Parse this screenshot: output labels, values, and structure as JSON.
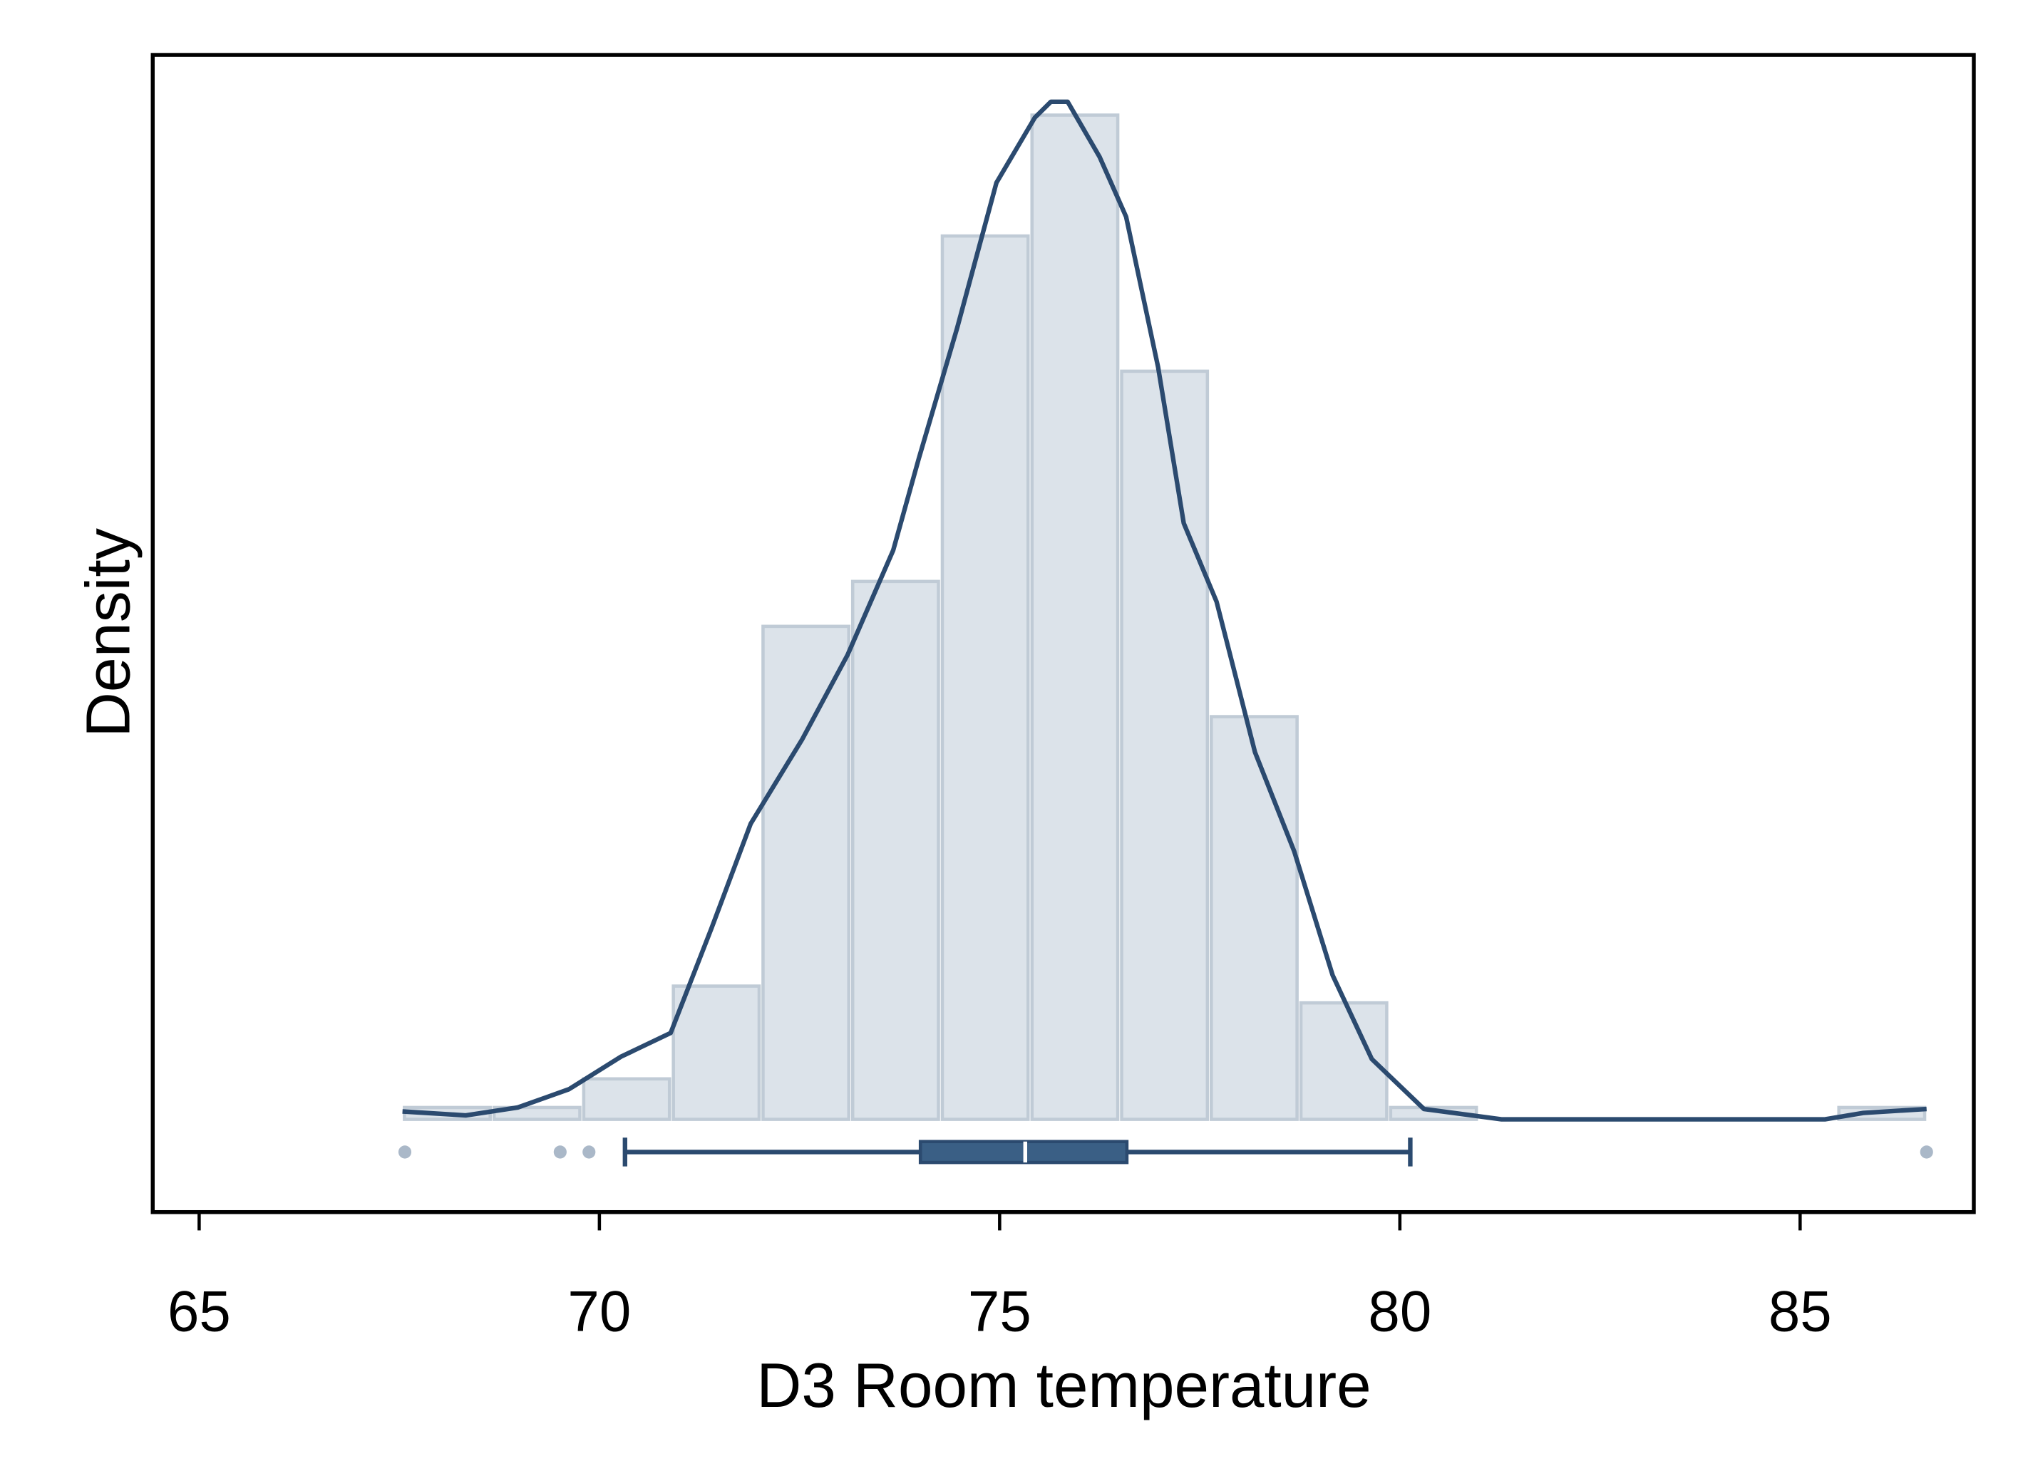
{
  "chart_data": {
    "type": "histogram",
    "xlabel": "D3 Room temperature",
    "ylabel": "Density",
    "bins": [
      67.54,
      68.66,
      69.78,
      70.9,
      72.02,
      73.14,
      74.26,
      75.38,
      76.5,
      77.62,
      78.74,
      79.86,
      80.98,
      82.1,
      83.22,
      84.34,
      85.46,
      86.58
    ],
    "values": [
      0.0024,
      0.0024,
      0.0082,
      0.027,
      0.0999,
      0.109,
      0.179,
      0.2035,
      0.1516,
      0.0816,
      0.0236,
      0.0024,
      0,
      0,
      0,
      0,
      0.0024
    ],
    "color": "#dce3ea",
    "edgecolor": "#c0cbd6",
    "density": {
      "color": "#2b4a6f",
      "x": [
        67.54,
        68.33,
        68.98,
        69.62,
        70.27,
        70.89,
        71.4,
        71.89,
        72.53,
        73.1,
        73.67,
        73.99,
        74.47,
        74.96,
        75.44,
        75.64,
        75.85,
        76.25,
        76.58,
        76.98,
        77.3,
        77.71,
        78.19,
        78.68,
        79.16,
        79.65,
        80.3,
        81.27,
        85.31,
        85.79,
        86.58
      ],
      "y": [
        0.0016,
        0.0008,
        0.0024,
        0.0061,
        0.0127,
        0.0175,
        0.0387,
        0.0599,
        0.0769,
        0.0941,
        0.1153,
        0.1339,
        0.1604,
        0.1898,
        0.203,
        0.2062,
        0.2062,
        0.195,
        0.1829,
        0.1524,
        0.1208,
        0.1049,
        0.0744,
        0.0543,
        0.0292,
        0.0122,
        0.0021,
        0,
        0,
        0.0013,
        0.0021
      ]
    },
    "boxplot": {
      "whislo": 70.32,
      "q1": 74.01,
      "med": 75.32,
      "q3": 76.59,
      "whishi": 80.13,
      "fliers": [
        67.57,
        69.51,
        69.87,
        86.58
      ],
      "color": "#3a5f85",
      "flier_color": "#aab8c8"
    },
    "xlim": [
      64.42,
      87.17
    ],
    "xticks": [
      65,
      70,
      75,
      80,
      85
    ],
    "ylim": [
      -0.0188,
      0.2157
    ]
  }
}
